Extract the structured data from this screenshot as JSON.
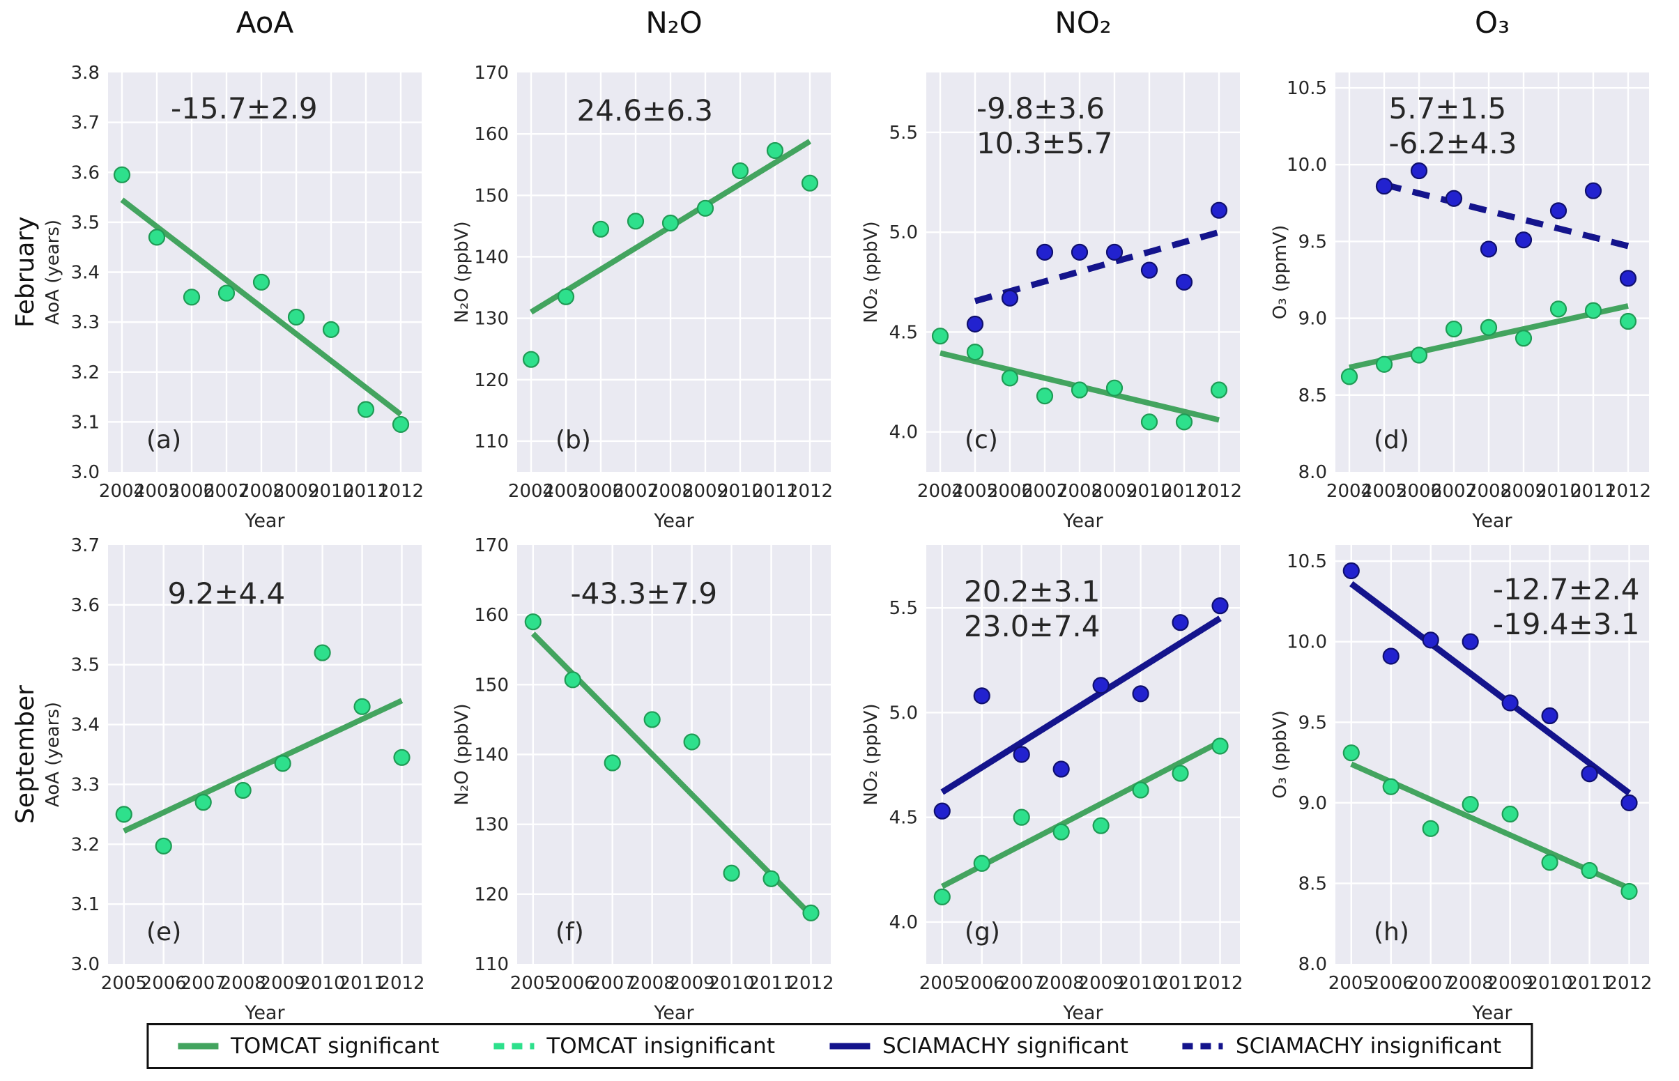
{
  "chart_data": {
    "type": "scatter",
    "column_titles": [
      "AoA",
      "N₂O",
      "NO₂",
      "O₃"
    ],
    "row_labels": [
      "February",
      "September"
    ],
    "xlabel": "Year",
    "legend": [
      {
        "label": "TOMCAT significant",
        "color": "#43a45f",
        "dash": "solid"
      },
      {
        "label": "TOMCAT insignificant",
        "color": "#2ee08c",
        "dash": "dashed"
      },
      {
        "label": "SCIAMACHY significant",
        "color": "#14148c",
        "dash": "solid"
      },
      {
        "label": "SCIAMACHY insignificant",
        "color": "#14148c",
        "dash": "dashed"
      }
    ],
    "style": {
      "plot_bg": "#eaeaf2",
      "grid": "#ffffff",
      "text": "#262626",
      "tomcat_line": "#43a45f",
      "tomcat_marker": "#2ee08c",
      "tomcat_marker_edge": "#1f9b55",
      "sciamachy_line": "#14148c",
      "sciamachy_marker": "#2222cf",
      "sciamachy_marker_edge": "#10106e",
      "ann_green": "#20a020",
      "ann_navy": "#16168e"
    },
    "charts": [
      {
        "panel": "(a)",
        "row": "February",
        "title": "AoA",
        "ylabel": "AoA (years)",
        "xlabel": "Year",
        "xlim": [
          2003.6,
          2012.6
        ],
        "ylim": [
          3.0,
          3.8
        ],
        "ydecimals": 1,
        "xticks": [
          2004,
          2005,
          2006,
          2007,
          2008,
          2009,
          2010,
          2011,
          2012
        ],
        "yticks": [
          3.0,
          3.1,
          3.2,
          3.3,
          3.4,
          3.5,
          3.6,
          3.7,
          3.8
        ],
        "annotations": [
          {
            "text": "-15.7±2.9",
            "color": "green"
          }
        ],
        "ann_pos": {
          "x": 0.2,
          "y": 0.115,
          "anchor": "start"
        },
        "series": [
          {
            "name": "TOMCAT",
            "kind": "points",
            "color": "green",
            "x": [
              2004,
              2005,
              2006,
              2007,
              2008,
              2009,
              2010,
              2011,
              2012
            ],
            "y": [
              3.595,
              3.47,
              3.35,
              3.358,
              3.38,
              3.31,
              3.285,
              3.125,
              3.095
            ]
          },
          {
            "name": "TOMCAT trend significant",
            "kind": "trend",
            "style": "solid",
            "color": "green",
            "x": [
              2004,
              2012
            ],
            "y": [
              3.545,
              3.115
            ]
          }
        ]
      },
      {
        "panel": "(b)",
        "row": "February",
        "title": "N₂O",
        "ylabel": "N₂O (ppbV)",
        "xlabel": "Year",
        "xlim": [
          2003.6,
          2012.6
        ],
        "ylim": [
          105,
          170
        ],
        "ydecimals": 0,
        "xticks": [
          2004,
          2005,
          2006,
          2007,
          2008,
          2009,
          2010,
          2011,
          2012
        ],
        "yticks": [
          110,
          120,
          130,
          140,
          150,
          160,
          170
        ],
        "annotations": [
          {
            "text": "24.6±6.3",
            "color": "green"
          }
        ],
        "ann_pos": {
          "x": 0.19,
          "y": 0.12,
          "anchor": "start"
        },
        "series": [
          {
            "name": "TOMCAT",
            "kind": "points",
            "color": "green",
            "x": [
              2004,
              2005,
              2006,
              2007,
              2008,
              2009,
              2010,
              2011,
              2012
            ],
            "y": [
              123.3,
              133.5,
              144.5,
              145.8,
              145.5,
              147.9,
              154.0,
              157.3,
              152.0
            ]
          },
          {
            "name": "TOMCAT trend significant",
            "kind": "trend",
            "style": "solid",
            "color": "green",
            "x": [
              2004,
              2012
            ],
            "y": [
              131.0,
              158.8
            ]
          }
        ]
      },
      {
        "panel": "(c)",
        "row": "February",
        "title": "NO₂",
        "ylabel": "NO₂ (ppbV)",
        "xlabel": "Year",
        "xlim": [
          2003.6,
          2012.6
        ],
        "ylim": [
          3.8,
          5.8
        ],
        "ydecimals": 1,
        "xticks": [
          2004,
          2005,
          2006,
          2007,
          2008,
          2009,
          2010,
          2011,
          2012
        ],
        "yticks": [
          4.0,
          4.5,
          5.0,
          5.5
        ],
        "annotations": [
          {
            "text": "-9.8±3.6",
            "color": "green"
          },
          {
            "text": "10.3±5.7",
            "color": "navy"
          }
        ],
        "ann_pos": {
          "x": 0.16,
          "y": 0.115,
          "anchor": "start"
        },
        "series": [
          {
            "name": "TOMCAT",
            "kind": "points",
            "color": "green",
            "x": [
              2004,
              2005,
              2006,
              2007,
              2008,
              2009,
              2010,
              2011,
              2012
            ],
            "y": [
              4.48,
              4.4,
              4.27,
              4.18,
              4.21,
              4.22,
              4.05,
              4.05,
              4.21
            ]
          },
          {
            "name": "TOMCAT trend significant",
            "kind": "trend",
            "style": "solid",
            "color": "green",
            "x": [
              2004,
              2012
            ],
            "y": [
              4.395,
              4.06
            ]
          },
          {
            "name": "SCIAMACHY",
            "kind": "points",
            "color": "navy",
            "x": [
              2005,
              2006,
              2007,
              2008,
              2009,
              2010,
              2011,
              2012
            ],
            "y": [
              4.54,
              4.67,
              4.9,
              4.9,
              4.9,
              4.81,
              4.75,
              5.11
            ]
          },
          {
            "name": "SCIAMACHY trend insignificant",
            "kind": "trend",
            "style": "dashed",
            "color": "navy",
            "x": [
              2005,
              2012
            ],
            "y": [
              4.655,
              5.0
            ]
          }
        ]
      },
      {
        "panel": "(d)",
        "row": "February",
        "title": "O₃",
        "ylabel": "O₃ (ppmV)",
        "xlabel": "Year",
        "xlim": [
          2003.6,
          2012.6
        ],
        "ylim": [
          8.0,
          10.6
        ],
        "ydecimals": 1,
        "xticks": [
          2004,
          2005,
          2006,
          2007,
          2008,
          2009,
          2010,
          2011,
          2012
        ],
        "yticks": [
          8.0,
          8.5,
          9.0,
          9.5,
          10.0,
          10.5
        ],
        "annotations": [
          {
            "text": "5.7±1.5",
            "color": "green"
          },
          {
            "text": "-6.2±4.3",
            "color": "navy"
          }
        ],
        "ann_pos": {
          "x": 0.17,
          "y": 0.115,
          "anchor": "start"
        },
        "series": [
          {
            "name": "TOMCAT",
            "kind": "points",
            "color": "green",
            "x": [
              2004,
              2005,
              2006,
              2007,
              2008,
              2009,
              2010,
              2011,
              2012
            ],
            "y": [
              8.62,
              8.7,
              8.76,
              8.93,
              8.94,
              8.87,
              9.06,
              9.05,
              8.98
            ]
          },
          {
            "name": "TOMCAT trend significant",
            "kind": "trend",
            "style": "solid",
            "color": "green",
            "x": [
              2004,
              2012
            ],
            "y": [
              8.68,
              9.08
            ]
          },
          {
            "name": "SCIAMACHY",
            "kind": "points",
            "color": "navy",
            "x": [
              2005,
              2006,
              2007,
              2008,
              2009,
              2010,
              2011,
              2012
            ],
            "y": [
              9.86,
              9.96,
              9.78,
              9.45,
              9.51,
              9.7,
              9.83,
              9.26
            ]
          },
          {
            "name": "SCIAMACHY trend insignificant",
            "kind": "trend",
            "style": "dashed",
            "color": "navy",
            "x": [
              2005,
              2012
            ],
            "y": [
              9.87,
              9.47
            ]
          }
        ]
      },
      {
        "panel": "(e)",
        "row": "September",
        "title": "",
        "ylabel": "AoA (years)",
        "xlabel": "Year",
        "xlim": [
          2004.6,
          2012.5
        ],
        "ylim": [
          3.0,
          3.7
        ],
        "ydecimals": 1,
        "xticks": [
          2005,
          2006,
          2007,
          2008,
          2009,
          2010,
          2011,
          2012
        ],
        "yticks": [
          3.0,
          3.1,
          3.2,
          3.3,
          3.4,
          3.5,
          3.6,
          3.7
        ],
        "annotations": [
          {
            "text": "9.2±4.4",
            "color": "green"
          }
        ],
        "ann_pos": {
          "x": 0.19,
          "y": 0.14,
          "anchor": "start"
        },
        "series": [
          {
            "name": "TOMCAT",
            "kind": "points",
            "color": "green",
            "x": [
              2005,
              2006,
              2007,
              2008,
              2009,
              2010,
              2011,
              2012
            ],
            "y": [
              3.25,
              3.197,
              3.27,
              3.29,
              3.335,
              3.52,
              3.43,
              3.345
            ]
          },
          {
            "name": "TOMCAT trend significant",
            "kind": "trend",
            "style": "solid",
            "color": "green",
            "x": [
              2005,
              2012
            ],
            "y": [
              3.222,
              3.44
            ]
          }
        ]
      },
      {
        "panel": "(f)",
        "row": "September",
        "title": "",
        "ylabel": "N₂O (ppbV)",
        "xlabel": "Year",
        "xlim": [
          2004.6,
          2012.5
        ],
        "ylim": [
          110,
          170
        ],
        "ydecimals": 0,
        "xticks": [
          2005,
          2006,
          2007,
          2008,
          2009,
          2010,
          2011,
          2012
        ],
        "yticks": [
          110,
          120,
          130,
          140,
          150,
          160,
          170
        ],
        "annotations": [
          {
            "text": "-43.3±7.9",
            "color": "green"
          }
        ],
        "ann_pos": {
          "x": 0.17,
          "y": 0.14,
          "anchor": "start"
        },
        "series": [
          {
            "name": "TOMCAT",
            "kind": "points",
            "color": "green",
            "x": [
              2005,
              2006,
              2007,
              2008,
              2009,
              2010,
              2011,
              2012
            ],
            "y": [
              159.0,
              150.7,
              138.8,
              145.0,
              141.8,
              123.0,
              122.2,
              117.3
            ]
          },
          {
            "name": "TOMCAT trend significant",
            "kind": "trend",
            "style": "solid",
            "color": "green",
            "x": [
              2005,
              2012
            ],
            "y": [
              157.3,
              117.0
            ]
          }
        ]
      },
      {
        "panel": "(g)",
        "row": "September",
        "title": "",
        "ylabel": "NO₂ (ppbV)",
        "xlabel": "Year",
        "xlim": [
          2004.6,
          2012.5
        ],
        "ylim": [
          3.8,
          5.8
        ],
        "ydecimals": 1,
        "xticks": [
          2005,
          2006,
          2007,
          2008,
          2009,
          2010,
          2011,
          2012
        ],
        "yticks": [
          4.0,
          4.5,
          5.0,
          5.5
        ],
        "annotations": [
          {
            "text": "20.2±3.1",
            "color": "green"
          },
          {
            "text": "23.0±7.4",
            "color": "navy"
          }
        ],
        "ann_pos": {
          "x": 0.12,
          "y": 0.135,
          "anchor": "start"
        },
        "series": [
          {
            "name": "TOMCAT",
            "kind": "points",
            "color": "green",
            "x": [
              2005,
              2006,
              2007,
              2008,
              2009,
              2010,
              2011,
              2012
            ],
            "y": [
              4.12,
              4.28,
              4.5,
              4.43,
              4.46,
              4.63,
              4.71,
              4.84
            ]
          },
          {
            "name": "TOMCAT trend significant",
            "kind": "trend",
            "style": "solid",
            "color": "green",
            "x": [
              2005,
              2012
            ],
            "y": [
              4.17,
              4.86
            ]
          },
          {
            "name": "SCIAMACHY",
            "kind": "points",
            "color": "navy",
            "x": [
              2005,
              2006,
              2007,
              2008,
              2009,
              2010,
              2011,
              2012
            ],
            "y": [
              4.53,
              5.08,
              4.8,
              4.73,
              5.13,
              5.09,
              5.43,
              5.51
            ]
          },
          {
            "name": "SCIAMACHY trend significant",
            "kind": "trend",
            "style": "solid",
            "color": "navy",
            "x": [
              2005,
              2012
            ],
            "y": [
              4.62,
              5.45
            ]
          }
        ]
      },
      {
        "panel": "(h)",
        "row": "September",
        "title": "",
        "ylabel": "O₃ (ppbV)",
        "xlabel": "Year",
        "xlim": [
          2004.6,
          2012.5
        ],
        "ylim": [
          8.0,
          10.6
        ],
        "ydecimals": 1,
        "xticks": [
          2005,
          2006,
          2007,
          2008,
          2009,
          2010,
          2011,
          2012
        ],
        "yticks": [
          8.0,
          8.5,
          9.0,
          9.5,
          10.0,
          10.5
        ],
        "annotations": [
          {
            "text": "-12.7±2.4",
            "color": "green"
          },
          {
            "text": "-19.4±3.1",
            "color": "navy"
          }
        ],
        "ann_pos": {
          "x": 0.97,
          "y": 0.13,
          "anchor": "end"
        },
        "series": [
          {
            "name": "TOMCAT",
            "kind": "points",
            "color": "green",
            "x": [
              2005,
              2006,
              2007,
              2008,
              2009,
              2010,
              2011,
              2012
            ],
            "y": [
              9.31,
              9.1,
              8.84,
              8.99,
              8.93,
              8.63,
              8.58,
              8.45
            ]
          },
          {
            "name": "TOMCAT trend significant",
            "kind": "trend",
            "style": "solid",
            "color": "green",
            "x": [
              2005,
              2012
            ],
            "y": [
              9.24,
              8.47
            ]
          },
          {
            "name": "SCIAMACHY",
            "kind": "points",
            "color": "navy",
            "x": [
              2005,
              2006,
              2007,
              2008,
              2009,
              2010,
              2011,
              2012
            ],
            "y": [
              10.44,
              9.91,
              10.01,
              10.0,
              9.62,
              9.54,
              9.18,
              9.0
            ]
          },
          {
            "name": "SCIAMACHY trend significant",
            "kind": "trend",
            "style": "solid",
            "color": "navy",
            "x": [
              2005,
              2012
            ],
            "y": [
              10.36,
              9.06
            ]
          }
        ]
      }
    ]
  }
}
